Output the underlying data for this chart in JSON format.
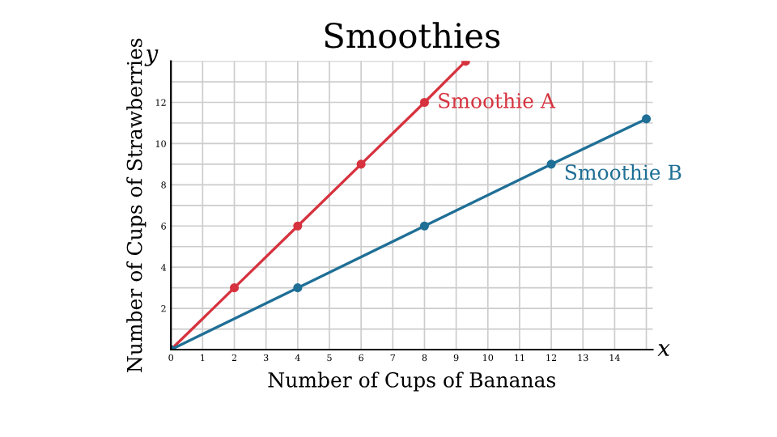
{
  "chart_data": {
    "type": "line",
    "title": "Smoothies",
    "xlabel": "Number of Cups of Bananas",
    "ylabel": "Number of Cups of Strawberries",
    "series": [
      {
        "name": "Smoothie A",
        "color": "#d6333f",
        "x": [
          0,
          2,
          4,
          6,
          8,
          9.3
        ],
        "values": [
          0,
          3,
          6,
          9,
          12,
          14
        ]
      },
      {
        "name": "Smoothie B",
        "color": "#1f6f96",
        "x": [
          0,
          4,
          8,
          12,
          15
        ],
        "values": [
          0,
          3,
          6,
          9,
          11.2
        ]
      }
    ],
    "annotations": [
      "x",
      "y"
    ],
    "xlim": [
      0,
      15.2
    ],
    "ylim": [
      0,
      14
    ],
    "xticks": [
      0,
      1,
      2,
      3,
      4,
      5,
      6,
      7,
      8,
      9,
      10,
      11,
      12,
      13,
      14
    ],
    "yticks": [
      2,
      4,
      6,
      8,
      10,
      12
    ],
    "grid": true,
    "marker": "circle",
    "line_style": "solid",
    "legend": false
  }
}
